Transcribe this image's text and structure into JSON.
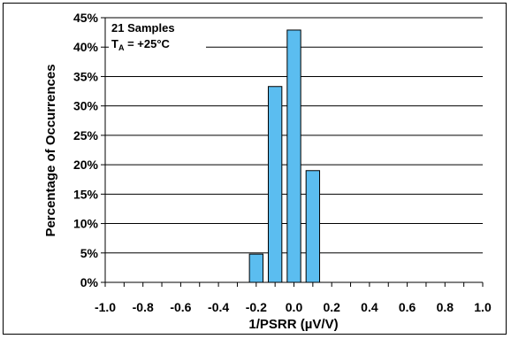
{
  "chart_data": {
    "type": "bar",
    "xlabel": "1/PSRR (µV/V)",
    "ylabel": "Percentage of Occurrences",
    "annotation": {
      "line1": "21 Samples",
      "line2_prefix": "T",
      "line2_sub": "A",
      "line2_suffix": " = +25°C"
    },
    "xlim": [
      -1.0,
      1.0
    ],
    "ylim": [
      0,
      45
    ],
    "x_ticks": [
      "-1.0",
      "-0.8",
      "-0.6",
      "-0.4",
      "-0.2",
      "0.0",
      "0.2",
      "0.4",
      "0.6",
      "0.8",
      "1.0"
    ],
    "x_tick_values": [
      -1.0,
      -0.8,
      -0.6,
      -0.4,
      -0.2,
      0.0,
      0.2,
      0.4,
      0.6,
      0.8,
      1.0
    ],
    "y_ticks": [
      "0%",
      "5%",
      "10%",
      "15%",
      "20%",
      "25%",
      "30%",
      "35%",
      "40%",
      "45%"
    ],
    "y_tick_values": [
      0,
      5,
      10,
      15,
      20,
      25,
      30,
      35,
      40,
      45
    ],
    "bin_width": 0.1,
    "x": [
      -0.2,
      -0.1,
      0.0,
      0.1
    ],
    "values": [
      4.8,
      33.3,
      42.9,
      19.0
    ],
    "grid": "horizontal",
    "bar_color": "#5bbdf0"
  }
}
